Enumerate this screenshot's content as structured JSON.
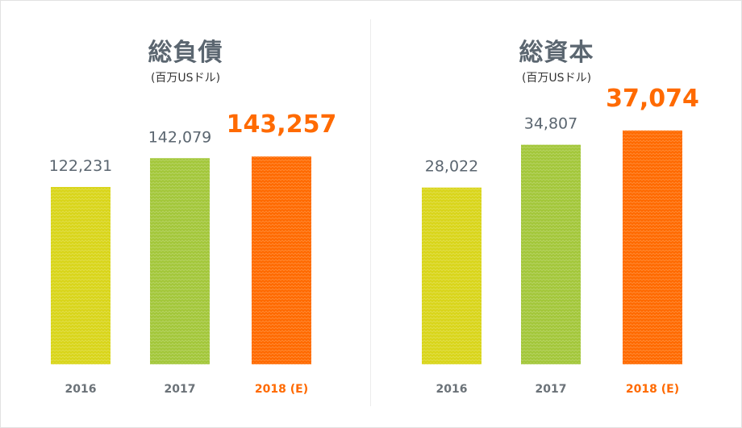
{
  "colors": {
    "bar_2016": "#d9d51a",
    "bar_2017": "#a3c73a",
    "bar_2018": "#ff6a00",
    "value_text": "#5b6670",
    "highlight_text": "#ff6a00",
    "axis_text": "#6b7278"
  },
  "chart_data": [
    {
      "type": "bar",
      "title": "総負債",
      "subtitle": "(百万USドル)",
      "categories": [
        "2016",
        "2017",
        "2018 (E)"
      ],
      "values": [
        122231,
        142079,
        143257
      ],
      "value_labels": [
        "122,231",
        "142,079",
        "143,257"
      ],
      "highlight_index": 2,
      "ylim": [
        0,
        200000
      ]
    },
    {
      "type": "bar",
      "title": "総資本",
      "subtitle": "(百万USドル)",
      "categories": [
        "2016",
        "2017",
        "2018 (E)"
      ],
      "values": [
        28022,
        34807,
        37074
      ],
      "value_labels": [
        "28,022",
        "34,807",
        "37,074"
      ],
      "highlight_index": 2,
      "ylim": [
        0,
        46000
      ]
    }
  ]
}
